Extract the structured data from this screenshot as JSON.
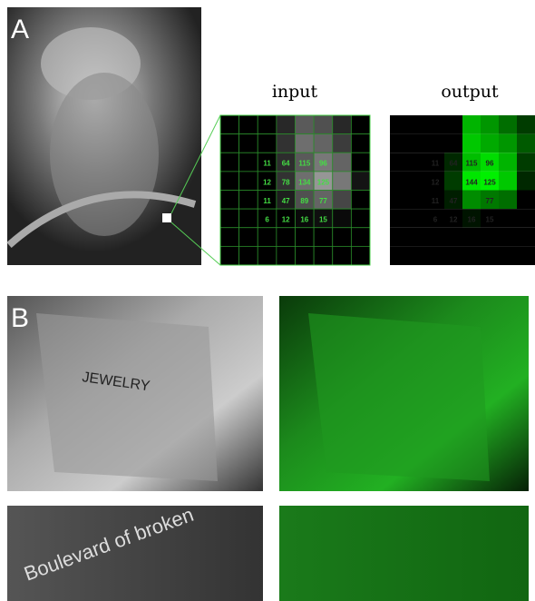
{
  "panel_a": {
    "label": "A",
    "input": {
      "title": "input",
      "values": [
        [
          11,
          64,
          115,
          96
        ],
        [
          12,
          78,
          134,
          125
        ],
        [
          11,
          47,
          89,
          77
        ],
        [
          6,
          12,
          16,
          15
        ]
      ]
    },
    "output": {
      "title": "output",
      "values": [
        [
          11,
          64,
          115,
          96
        ],
        [
          12,
          null,
          144,
          125
        ],
        [
          11,
          47,
          null,
          77
        ],
        [
          6,
          12,
          16,
          15
        ]
      ]
    }
  },
  "panel_b": {
    "label": "B"
  }
}
